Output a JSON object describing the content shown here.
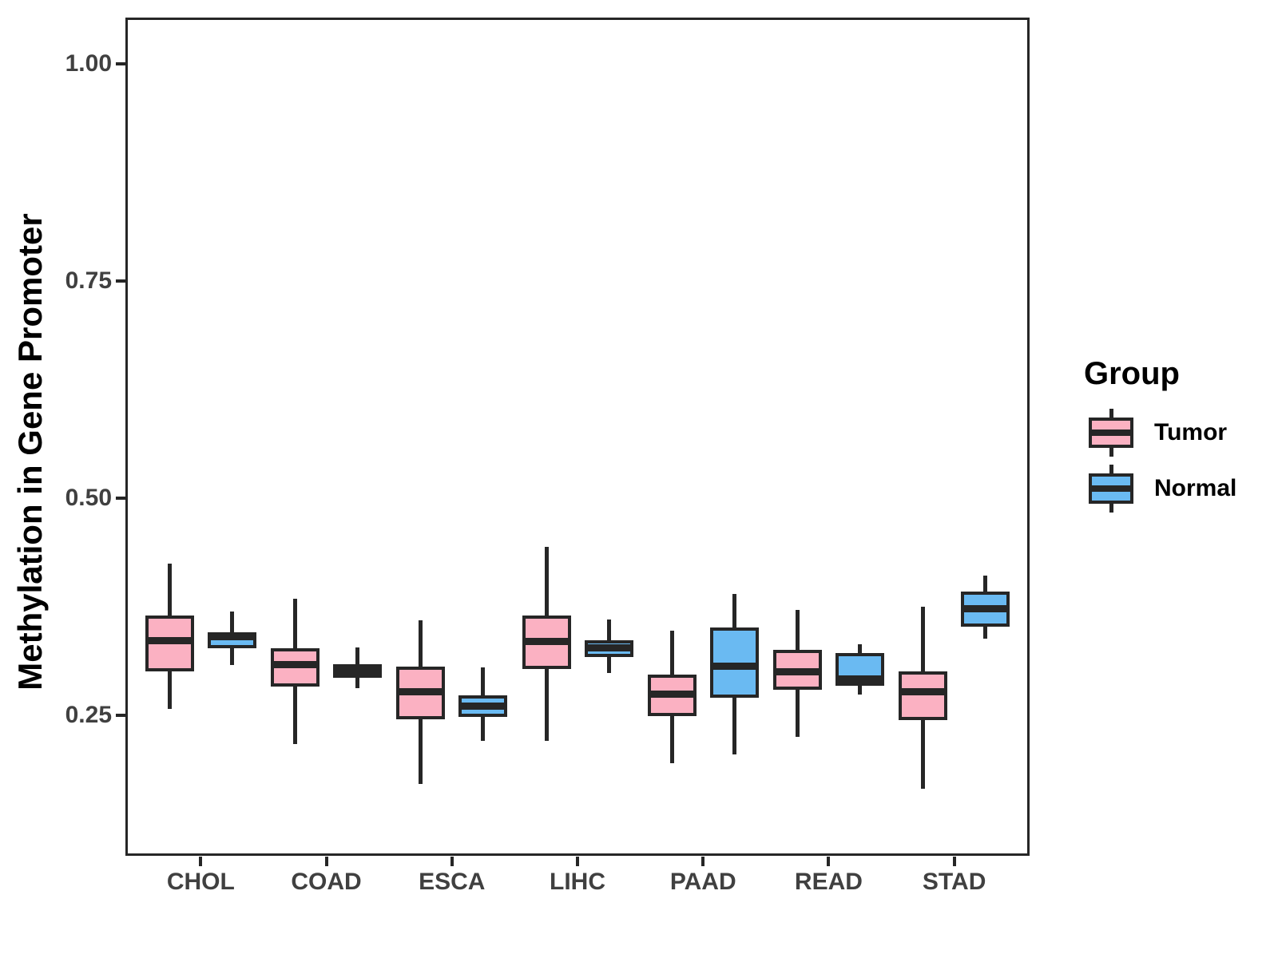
{
  "figure": {
    "background": "#FFFFFF",
    "y_axis_title": "Methylation in Gene Promoter",
    "legend": {
      "title": "Group",
      "items": [
        {
          "label": "Tumor",
          "color": "#FBB1C2"
        },
        {
          "label": "Normal",
          "color": "#6ABAF2"
        }
      ]
    }
  },
  "chart_data": {
    "type": "boxplot",
    "title": "",
    "xlabel": "",
    "ylabel": "Methylation in Gene Promoter",
    "categories": [
      "CHOL",
      "COAD",
      "ESCA",
      "LIHC",
      "PAAD",
      "READ",
      "STAD"
    ],
    "groups": [
      "Tumor",
      "Normal"
    ],
    "colors": {
      "Tumor": "#FBB1C2",
      "Normal": "#6ABAF2"
    },
    "line_color": "#262626",
    "ylim": [
      0.088,
      1.053
    ],
    "yticks": [
      {
        "value": 0.25,
        "label": "0.25"
      },
      {
        "value": 0.5,
        "label": "0.50"
      },
      {
        "value": 0.75,
        "label": "0.75"
      },
      {
        "value": 1.0,
        "label": "1.00"
      }
    ],
    "grid": false,
    "legend_position": "right",
    "series": [
      {
        "name": "Tumor",
        "boxes": [
          {
            "category": "CHOL",
            "min": 0.257,
            "q1": 0.3,
            "median": 0.336,
            "q3": 0.365,
            "max": 0.424
          },
          {
            "category": "COAD",
            "min": 0.217,
            "q1": 0.283,
            "median": 0.308,
            "q3": 0.327,
            "max": 0.384
          },
          {
            "category": "ESCA",
            "min": 0.171,
            "q1": 0.245,
            "median": 0.277,
            "q3": 0.306,
            "max": 0.359
          },
          {
            "category": "LIHC",
            "min": 0.22,
            "q1": 0.303,
            "median": 0.335,
            "q3": 0.365,
            "max": 0.444
          },
          {
            "category": "PAAD",
            "min": 0.195,
            "q1": 0.249,
            "median": 0.274,
            "q3": 0.297,
            "max": 0.347
          },
          {
            "category": "READ",
            "min": 0.225,
            "q1": 0.279,
            "median": 0.3,
            "q3": 0.325,
            "max": 0.371
          },
          {
            "category": "STAD",
            "min": 0.165,
            "q1": 0.244,
            "median": 0.277,
            "q3": 0.3,
            "max": 0.375
          }
        ]
      },
      {
        "name": "Normal",
        "boxes": [
          {
            "category": "CHOL",
            "min": 0.308,
            "q1": 0.327,
            "median": 0.34,
            "q3": 0.345,
            "max": 0.369
          },
          {
            "category": "COAD",
            "min": 0.281,
            "q1": 0.293,
            "median": 0.301,
            "q3": 0.309,
            "max": 0.328
          },
          {
            "category": "ESCA",
            "min": 0.22,
            "q1": 0.248,
            "median": 0.26,
            "q3": 0.273,
            "max": 0.305
          },
          {
            "category": "LIHC",
            "min": 0.298,
            "q1": 0.317,
            "median": 0.327,
            "q3": 0.336,
            "max": 0.36
          },
          {
            "category": "PAAD",
            "min": 0.205,
            "q1": 0.27,
            "median": 0.306,
            "q3": 0.351,
            "max": 0.389
          },
          {
            "category": "READ",
            "min": 0.274,
            "q1": 0.284,
            "median": 0.292,
            "q3": 0.321,
            "max": 0.332
          },
          {
            "category": "STAD",
            "min": 0.338,
            "q1": 0.352,
            "median": 0.372,
            "q3": 0.392,
            "max": 0.411
          }
        ]
      }
    ]
  }
}
